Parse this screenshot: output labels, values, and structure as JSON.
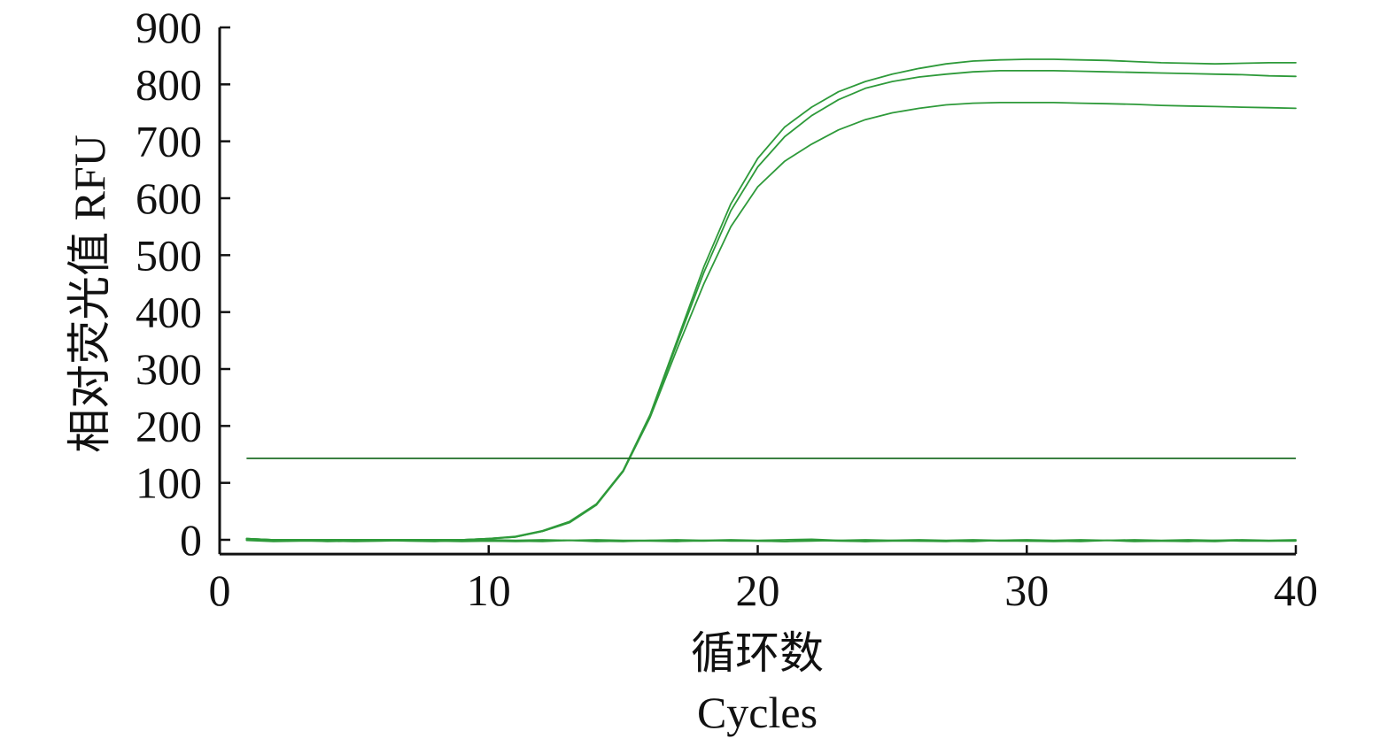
{
  "chart_data": {
    "type": "line",
    "xlabel_cn": "循环数",
    "xlabel": "Cycles",
    "ylabel": "相对荧光值 RFU",
    "xlim": [
      0,
      40
    ],
    "ylim": [
      -25,
      900
    ],
    "xticks": [
      0,
      10,
      20,
      30,
      40
    ],
    "yticks": [
      0,
      100,
      200,
      300,
      400,
      500,
      600,
      700,
      800,
      900
    ],
    "grid": false,
    "legend": "none",
    "colors": {
      "series": "#2e9a3a",
      "threshold": "#1f6e26",
      "axis": "#111111"
    },
    "threshold": 143,
    "x": [
      1,
      2,
      3,
      4,
      5,
      6,
      7,
      8,
      9,
      10,
      11,
      12,
      13,
      14,
      15,
      16,
      17,
      18,
      19,
      20,
      21,
      22,
      23,
      24,
      25,
      26,
      27,
      28,
      29,
      30,
      31,
      32,
      33,
      34,
      35,
      36,
      37,
      38,
      39,
      40
    ],
    "series": [
      {
        "values": [
          2,
          0,
          0,
          0,
          0,
          0,
          0,
          0,
          0,
          2,
          6,
          16,
          32,
          63,
          122,
          220,
          350,
          480,
          590,
          670,
          725,
          760,
          787,
          805,
          818,
          828,
          836,
          841,
          843,
          844,
          844,
          843,
          842,
          840,
          838,
          837,
          836,
          837,
          838,
          838
        ]
      },
      {
        "values": [
          2,
          0,
          0,
          0,
          0,
          0,
          0,
          0,
          0,
          2,
          5,
          15,
          31,
          62,
          121,
          218,
          345,
          470,
          578,
          655,
          708,
          745,
          773,
          793,
          805,
          813,
          818,
          822,
          824,
          824,
          824,
          823,
          822,
          821,
          820,
          819,
          818,
          817,
          815,
          814
        ]
      },
      {
        "values": [
          2,
          0,
          0,
          0,
          0,
          0,
          0,
          0,
          0,
          2,
          5,
          15,
          30,
          61,
          120,
          215,
          335,
          450,
          550,
          620,
          665,
          695,
          720,
          738,
          750,
          758,
          764,
          767,
          768,
          768,
          768,
          767,
          766,
          765,
          763,
          762,
          761,
          760,
          759,
          758
        ]
      },
      {
        "values": [
          0,
          -2,
          -1,
          -3,
          -2,
          -1,
          -2,
          -3,
          -1,
          -2,
          -2,
          -3,
          -1,
          -2,
          -3,
          -1,
          -2,
          -2,
          -1,
          -2,
          -3,
          -1,
          -2,
          -3,
          -1,
          -2,
          -2,
          -3,
          -1,
          -2,
          -2,
          -3,
          -1,
          -2,
          -2,
          -3,
          -1,
          -2,
          -2,
          -1
        ]
      },
      {
        "values": [
          -1,
          -3,
          -2,
          -2,
          -3,
          -2,
          -1,
          -2,
          -3,
          -2,
          -3,
          -2,
          -1,
          -3,
          -2,
          -2,
          -3,
          -1,
          -2,
          -2,
          -3,
          -2,
          -1,
          -3,
          -2,
          -2,
          -3,
          -1,
          -2,
          -2,
          -3,
          -2,
          -1,
          -3,
          -2,
          -2,
          -3,
          -1,
          -2,
          -2
        ]
      },
      {
        "values": [
          1,
          0,
          -1,
          -1,
          0,
          -1,
          0,
          -1,
          -1,
          0,
          -1,
          0,
          -1,
          0,
          -1,
          -1,
          0,
          -1,
          0,
          -1,
          0,
          1,
          -1,
          0,
          -1,
          0,
          -1,
          0,
          -1,
          0,
          -1,
          0,
          -1,
          0,
          -1,
          0,
          -1,
          0,
          -1,
          0
        ]
      }
    ]
  }
}
